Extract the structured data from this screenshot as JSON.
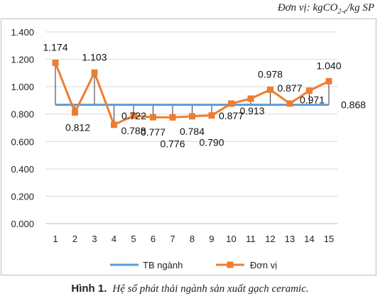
{
  "unit_note": {
    "prefix": "Đơn vị: kgCO",
    "sub": "2-e",
    "suffix": "/kg SP"
  },
  "caption": {
    "number": "Hình 1.",
    "text": "Hệ số phát thải ngành sản xuất gạch ceramic."
  },
  "colors": {
    "industry_avg": "#5b9bd5",
    "unit_series": "#ed7d31",
    "grid": "#d9d9d9",
    "axis": "#bfbfbf",
    "droplines": "#000000"
  },
  "chart_data": {
    "type": "line",
    "categories": [
      "1",
      "2",
      "3",
      "4",
      "5",
      "6",
      "7",
      "8",
      "9",
      "10",
      "11",
      "12",
      "13",
      "14",
      "15"
    ],
    "ylim": [
      0,
      1.4
    ],
    "yticks": [
      0,
      0.2,
      0.4,
      0.6,
      0.8,
      1.0,
      1.2,
      1.4
    ],
    "ytick_labels": [
      "0.000",
      "0.200",
      "0.400",
      "0.600",
      "0.800",
      "1.000",
      "1.200",
      "1.400"
    ],
    "grid": "horizontal",
    "legend_position": "bottom",
    "series": [
      {
        "name": "TB ngành",
        "values": [
          0.868,
          0.868,
          0.868,
          0.868,
          0.868,
          0.868,
          0.868,
          0.868,
          0.868,
          0.868,
          0.868,
          0.868,
          0.868,
          0.868,
          0.868
        ],
        "label": "0.868"
      },
      {
        "name": "Đơn vị",
        "values": [
          1.174,
          0.812,
          1.103,
          0.722,
          0.788,
          0.777,
          0.776,
          0.784,
          0.79,
          0.877,
          0.913,
          0.978,
          0.877,
          0.971,
          1.04
        ],
        "labels": [
          "1.174",
          "0.812",
          "1.103",
          "0.722",
          "0.788",
          "0.777",
          "0.776",
          "0.784",
          "0.790",
          "0.877",
          "0.913",
          "0.978",
          "0.877",
          "0.971",
          "1.040"
        ]
      }
    ]
  }
}
